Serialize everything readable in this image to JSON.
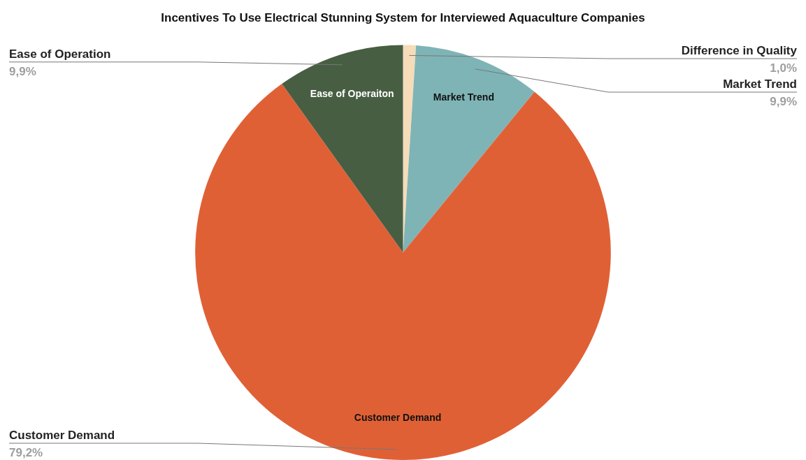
{
  "chart_data": {
    "type": "pie",
    "title": "Incentives To Use Electrical Stunning System for Interviewed Aquaculture Companies",
    "categories": [
      "Difference in Quality",
      "Market Trend",
      "Customer Demand",
      "Ease of Operation"
    ],
    "values": [
      1.0,
      9.9,
      79.2,
      9.9
    ],
    "colors": [
      "#f6dcb9",
      "#7fb4b6",
      "#e06036",
      "#475e42"
    ],
    "value_labels": [
      "1,0%",
      "9,9%",
      "79,2%",
      "9,9%"
    ],
    "annotations": [
      {
        "text": "Market Trend",
        "x": "Market Trend"
      },
      {
        "text": "Customer Demand",
        "x": "Customer Demand"
      },
      {
        "text": "Ease of Operaiton",
        "x": "Ease of Operation"
      }
    ],
    "legend": false
  }
}
